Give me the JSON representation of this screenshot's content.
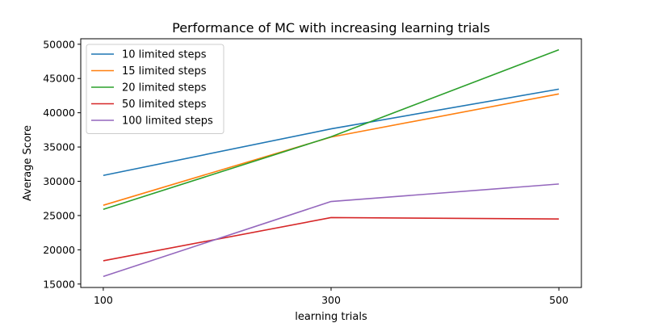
{
  "chart_data": {
    "type": "line",
    "title": "Performance of MC with increasing learning trials",
    "xlabel": "learning trials",
    "ylabel": "Average Score",
    "x": [
      100,
      300,
      500
    ],
    "xticks": [
      "100",
      "300",
      "500"
    ],
    "yticks": [
      "15000",
      "20000",
      "25000",
      "30000",
      "35000",
      "40000",
      "45000",
      "50000"
    ],
    "ylim": [
      14500,
      50800
    ],
    "grid": false,
    "legend_position": "top-left",
    "series": [
      {
        "name": "10 limited steps",
        "color": "#1f77b4",
        "values": [
          30850,
          37650,
          43450
        ]
      },
      {
        "name": "15 limited steps",
        "color": "#ff7f0e",
        "values": [
          26500,
          36450,
          42750
        ]
      },
      {
        "name": "20 limited steps",
        "color": "#2ca02c",
        "values": [
          25900,
          36500,
          49200
        ]
      },
      {
        "name": "50 limited steps",
        "color": "#d62728",
        "values": [
          18400,
          24700,
          24500
        ]
      },
      {
        "name": "100 limited steps",
        "color": "#9467bd",
        "values": [
          16100,
          27050,
          29600
        ]
      }
    ]
  }
}
